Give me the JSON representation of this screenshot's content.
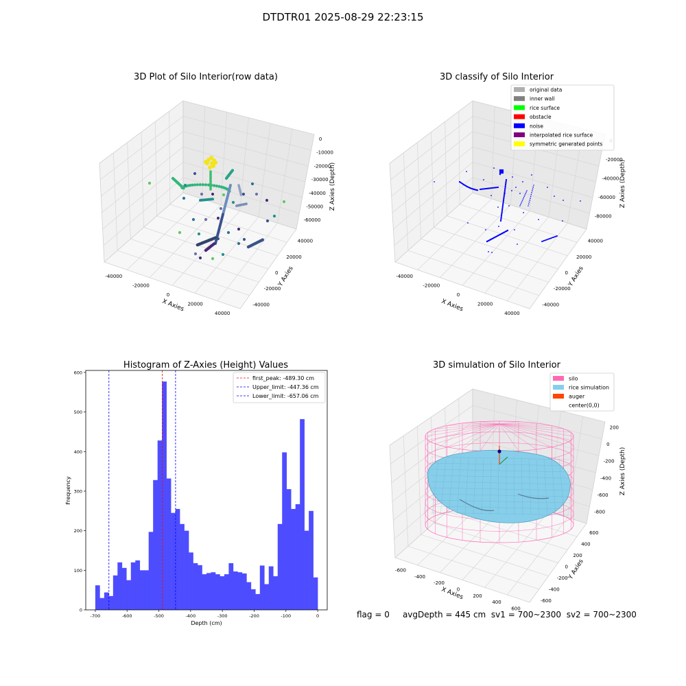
{
  "figure": {
    "suptitle": "DTDTR01 2025-08-29 22:23:15",
    "footer": {
      "flag": "flag = 0",
      "avg_depth": "avgDepth = 445 cm",
      "sv1": "sv1 = 700~2300",
      "sv2": "sv2 = 700~2300"
    }
  },
  "colors": {
    "hist_bar": "#4d4dff",
    "first_peak": "#ff0000",
    "limits": "#0000ff",
    "silo": "#ff69b4",
    "rice": "#87ceeb",
    "auger": "#ff4500",
    "noise": "#0000ff"
  },
  "chart_data": [
    {
      "type": "scatter",
      "title": "3D Plot of Silo Interior(row data)",
      "xlabel": "X Axies",
      "ylabel": "Y Axies",
      "zlabel": "Z Axies (Depth)",
      "x_ticks": [
        "-40000",
        "-20000",
        "0",
        "20000",
        "40000"
      ],
      "y_ticks": [
        "-40000",
        "-20000",
        "0",
        "20000",
        "40000"
      ],
      "z_ticks": [
        "0",
        "-10000",
        "-20000",
        "-30000",
        "-40000",
        "-50000",
        "-60000"
      ],
      "colormap": "viridis"
    },
    {
      "type": "scatter",
      "title": "3D classify of Silo Interior",
      "xlabel": "X Axies",
      "ylabel": "Y Axies",
      "zlabel": "Z Axies (Depth)",
      "x_ticks": [
        "-40000",
        "-20000",
        "0",
        "20000",
        "40000"
      ],
      "y_ticks": [
        "-40000",
        "-20000",
        "0",
        "20000",
        "40000"
      ],
      "z_ticks": [
        "0",
        "-20000",
        "-40000",
        "-60000",
        "-80000"
      ],
      "legend_position": "top-right",
      "legend": [
        {
          "label": "original data",
          "color": "#b0b0b0"
        },
        {
          "label": "inner wall",
          "color": "#808080"
        },
        {
          "label": "rice surface",
          "color": "#00ff00"
        },
        {
          "label": "obstacle",
          "color": "#ff0000"
        },
        {
          "label": "noise",
          "color": "#0000ff"
        },
        {
          "label": "interpolated rice surface",
          "color": "#800080"
        },
        {
          "label": "symmetric generated points",
          "color": "#ffff00"
        }
      ]
    },
    {
      "type": "bar",
      "title": "Histogram of Z-Axies (Height) Values",
      "xlabel": "Depth (cm)",
      "ylabel": "Frequency",
      "xlim": [
        -730,
        30
      ],
      "ylim": [
        0,
        605
      ],
      "x_ticks": [
        -700,
        -600,
        -500,
        -400,
        -300,
        -200,
        -100,
        0
      ],
      "y_ticks": [
        0,
        100,
        200,
        300,
        400,
        500,
        600
      ],
      "bin_start": -700,
      "bin_width": 14,
      "values": [
        62,
        30,
        44,
        35,
        87,
        120,
        106,
        75,
        120,
        125,
        100,
        100,
        197,
        328,
        428,
        577,
        332,
        245,
        255,
        217,
        200,
        145,
        118,
        113,
        90,
        93,
        95,
        90,
        85,
        90,
        118,
        97,
        95,
        92,
        70,
        52,
        40,
        112,
        65,
        110,
        85,
        217,
        398,
        305,
        255,
        267,
        482,
        200,
        250,
        82
      ],
      "legend_position": "top-right",
      "lines": [
        {
          "label": "first_peak: -489.30 cm",
          "x": -489.3,
          "color": "#ff0000"
        },
        {
          "label": "Upper_limit: -447.36 cm",
          "x": -447.36,
          "color": "#0000ff"
        },
        {
          "label": "Lower_limit: -657.06 cm",
          "x": -657.06,
          "color": "#0000ff"
        }
      ]
    },
    {
      "type": "scatter",
      "title": "3D simulation of Silo Interior",
      "xlabel": "X Axies",
      "ylabel": "Y Axies",
      "zlabel": "Z Axies (Depth)",
      "x_ticks": [
        "-600",
        "-400",
        "-200",
        "0",
        "200",
        "400",
        "600"
      ],
      "y_ticks": [
        "-600",
        "-400",
        "-200",
        "0",
        "200",
        "400",
        "600"
      ],
      "z_ticks": [
        "200",
        "0",
        "-200",
        "-400",
        "-600",
        "-800"
      ],
      "legend_position": "top-right",
      "legend": [
        {
          "label": "silo",
          "color": "#ff69b4"
        },
        {
          "label": "rice simulation",
          "color": "#87ceeb"
        },
        {
          "label": "auger",
          "color": "#ff4500"
        },
        {
          "label": "center(0,0)",
          "color": ""
        }
      ]
    }
  ]
}
